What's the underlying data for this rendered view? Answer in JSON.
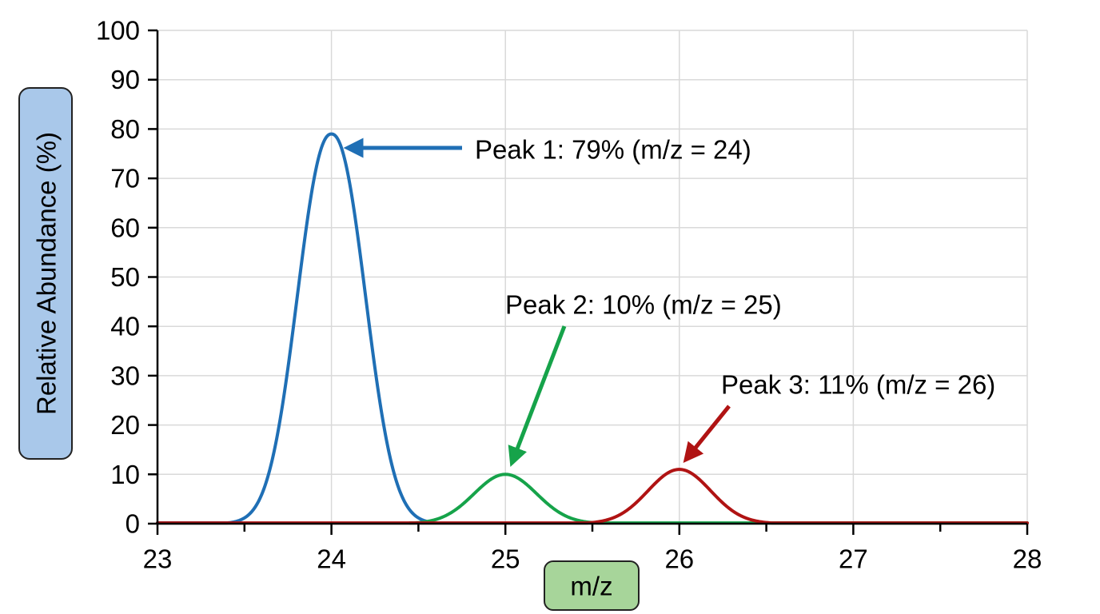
{
  "chart_data": {
    "type": "line",
    "xlabel": "m/z",
    "ylabel": "Relative Abundance (%)",
    "xlim": [
      23,
      28
    ],
    "ylim": [
      0,
      100
    ],
    "x_ticks": [
      "23",
      "24",
      "25",
      "26",
      "27",
      "28"
    ],
    "y_ticks": [
      "0",
      "10",
      "20",
      "30",
      "40",
      "50",
      "60",
      "70",
      "80",
      "90",
      "100"
    ],
    "grid": true,
    "colors": {
      "ylabel_box": "#a9c8ea",
      "xlabel_box": "#a7d59a"
    },
    "series": [
      {
        "name": "",
        "color": "#1f6fb5",
        "center": 24,
        "peak": 79,
        "x_start": 23,
        "x_end": 24.55,
        "sigma": 0.17
      },
      {
        "name": "",
        "color": "#16a34a",
        "center": 25,
        "peak": 10,
        "x_start": 24.45,
        "x_end": 28,
        "sigma": 0.18
      },
      {
        "name": "",
        "color": "#b01313",
        "center": 26,
        "peak": 11,
        "x_start": 23,
        "x_end": 28,
        "sigma": 0.18
      }
    ],
    "annotations": [
      {
        "text": "Peak 1: 79% (m/z = 24)",
        "x": 24,
        "y": 79,
        "color": "#1f6fb5"
      },
      {
        "text": "Peak 2: 10% (m/z = 25)",
        "x": 25,
        "y": 10,
        "color": "#16a34a"
      },
      {
        "text": "Peak 3: 11% (m/z = 26)",
        "x": 26,
        "y": 11,
        "color": "#b01313"
      }
    ]
  }
}
